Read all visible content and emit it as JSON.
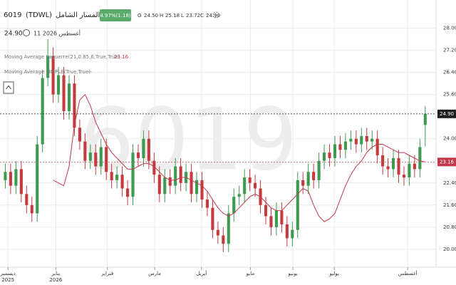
{
  "header": {
    "symbol": "6019",
    "exchange": "(TDWL)",
    "name": "المسار الشامل",
    "change": "4.97%(1.18)",
    "open_label": "O",
    "open": "24.50",
    "high_label": "H",
    "high": "25.18",
    "low_label": "L",
    "low": "23.72",
    "close_label": "C",
    "close": "24.90",
    "last": "24.90",
    "date": "11 أغسطس 2026"
  },
  "indicators": [
    {
      "name": "Moving Average Laguerre(21,0.85,6,True,True)",
      "value": "23.16"
    },
    {
      "name": "Moving Average SIMPLE(True,True)",
      "value": "--"
    }
  ],
  "chart_data": {
    "type": "candlestick",
    "watermark": "6019",
    "up_color": "#3d9a50",
    "down_color": "#c43a3d",
    "xlim": [
      -1,
      80.5
    ],
    "xticks": [
      {
        "value": 0.5,
        "label": "ديسمبر",
        "year": "2025"
      },
      {
        "value": 9.5,
        "label": "يناير",
        "year": "2026"
      },
      {
        "value": 19.2,
        "label": "فبراير"
      },
      {
        "value": 28.1,
        "label": "مارس"
      },
      {
        "value": 36.9,
        "label": "أبريل"
      },
      {
        "value": 46.1,
        "label": "مايو"
      },
      {
        "value": 54.1,
        "label": "يونيو"
      },
      {
        "value": 61.9,
        "label": "يوليو"
      },
      {
        "value": 75.7,
        "label": "أغسطس"
      }
    ],
    "ylim": [
      19.3,
      28.3
    ],
    "yticks": [
      {
        "value": 20,
        "label": "20.00"
      },
      {
        "value": 20.8,
        "label": "20.80"
      },
      {
        "value": 21.6,
        "label": "21.60"
      },
      {
        "value": 22.4,
        "label": "22.40"
      },
      {
        "value": 24,
        "label": "24.00"
      },
      {
        "value": 25.6,
        "label": "25.60"
      },
      {
        "value": 26.4,
        "label": "26.40"
      },
      {
        "value": 27.2,
        "label": "27.20"
      },
      {
        "value": 28,
        "label": "28.00"
      }
    ],
    "open": [
      22.5,
      22.8,
      22.3,
      22.9,
      22.0,
      21.6,
      21.3,
      23.8,
      26.2,
      27.0,
      25.6,
      26.3,
      25.0,
      26.0,
      24.4,
      23.9,
      23.2,
      23.5,
      23.0,
      23.7,
      22.8,
      22.5,
      22.7,
      22.2,
      21.9,
      23.5,
      23.3,
      24.0,
      23.2,
      22.7,
      22.0,
      22.6,
      22.3,
      23.0,
      22.4,
      22.8,
      22.0,
      22.5,
      21.8,
      21.5,
      20.7,
      20.5,
      20.2,
      21.3,
      21.9,
      22.0,
      22.6,
      22.4,
      22.2,
      21.6,
      21.2,
      20.8,
      21.4,
      20.9,
      20.4,
      20.7,
      22.5,
      22.3,
      22.8,
      22.5,
      23.2,
      23.5,
      23.3,
      23.8,
      23.6,
      23.9,
      24.0,
      23.8,
      24.1,
      23.9,
      24.0,
      23.4,
      23.0,
      22.9,
      23.3,
      22.7,
      22.6,
      23.1,
      22.9,
      24.5
    ],
    "high": [
      23.1,
      23.1,
      23.2,
      23.2,
      22.3,
      21.9,
      24.1,
      26.5,
      27.6,
      27.3,
      26.6,
      26.6,
      26.3,
      26.3,
      24.7,
      24.2,
      23.8,
      23.8,
      24.0,
      24.0,
      23.1,
      23.0,
      23.0,
      22.5,
      23.8,
      23.8,
      24.3,
      24.3,
      23.5,
      23.0,
      22.9,
      22.9,
      23.3,
      23.3,
      23.1,
      23.1,
      22.8,
      22.8,
      22.1,
      21.8,
      21.0,
      20.8,
      21.6,
      22.2,
      22.3,
      22.9,
      22.9,
      22.7,
      22.5,
      21.9,
      21.5,
      21.7,
      21.7,
      21.2,
      21.0,
      22.8,
      22.8,
      23.1,
      23.1,
      23.5,
      23.8,
      23.8,
      24.1,
      24.1,
      24.2,
      24.3,
      24.3,
      24.4,
      24.4,
      24.3,
      24.3,
      23.7,
      23.3,
      23.6,
      23.6,
      23.0,
      23.4,
      23.4,
      24.0,
      25.18
    ],
    "low": [
      22.2,
      22.0,
      22.0,
      21.7,
      21.3,
      21.0,
      21.0,
      23.5,
      25.9,
      25.3,
      25.3,
      24.7,
      24.7,
      24.1,
      23.6,
      22.9,
      22.9,
      22.7,
      22.7,
      22.5,
      22.2,
      22.2,
      21.9,
      21.6,
      21.6,
      23.0,
      23.0,
      22.9,
      22.4,
      21.7,
      21.7,
      22.0,
      22.0,
      22.1,
      22.1,
      21.7,
      21.7,
      21.5,
      21.2,
      20.4,
      20.2,
      19.9,
      19.9,
      21.0,
      21.6,
      21.7,
      22.1,
      21.9,
      21.3,
      20.9,
      20.5,
      20.5,
      20.6,
      20.1,
      20.1,
      20.4,
      22.0,
      22.0,
      22.2,
      22.2,
      22.9,
      23.0,
      23.0,
      23.3,
      23.3,
      23.6,
      23.5,
      23.5,
      23.6,
      23.6,
      23.1,
      22.7,
      22.6,
      22.6,
      22.4,
      22.3,
      22.3,
      22.6,
      22.6,
      23.72
    ],
    "close": [
      22.8,
      22.3,
      22.9,
      22.0,
      21.6,
      21.3,
      23.8,
      26.2,
      27.0,
      25.6,
      26.3,
      25.0,
      26.0,
      24.4,
      23.9,
      23.2,
      23.5,
      23.0,
      23.7,
      22.8,
      22.5,
      22.7,
      22.2,
      21.9,
      23.5,
      23.3,
      24.0,
      23.2,
      22.7,
      22.0,
      22.6,
      22.3,
      23.0,
      22.4,
      22.8,
      22.0,
      22.5,
      21.8,
      21.5,
      20.7,
      20.5,
      20.2,
      21.3,
      21.9,
      22.0,
      22.6,
      22.4,
      22.2,
      21.6,
      21.2,
      20.8,
      21.4,
      20.9,
      20.4,
      20.7,
      22.5,
      22.3,
      22.8,
      22.5,
      23.2,
      23.5,
      23.3,
      23.8,
      23.6,
      23.9,
      24.0,
      23.8,
      24.1,
      23.9,
      24.0,
      23.4,
      23.0,
      22.9,
      23.3,
      22.7,
      22.6,
      23.1,
      22.9,
      23.7,
      24.9
    ],
    "ma": {
      "color": "#c0394a",
      "values": [
        null,
        null,
        null,
        null,
        null,
        null,
        null,
        null,
        null,
        22.5,
        22.4,
        22.3,
        23.0,
        24.5,
        25.4,
        25.6,
        25.2,
        24.6,
        24.2,
        23.8,
        23.5,
        23.3,
        23.1,
        22.9,
        22.9,
        23.0,
        23.1,
        23.1,
        23.0,
        22.8,
        22.6,
        22.5,
        22.5,
        22.6,
        22.6,
        22.5,
        22.4,
        22.3,
        22.1,
        21.8,
        21.5,
        21.3,
        21.2,
        21.3,
        21.5,
        21.7,
        21.9,
        22.0,
        21.9,
        21.7,
        21.5,
        21.4,
        21.4,
        21.6,
        21.8,
        22.0,
        22.2,
        22.1,
        21.6,
        21.2,
        21.0,
        21.1,
        21.3,
        21.8,
        22.3,
        22.7,
        23.0,
        23.2,
        23.5,
        23.7,
        23.8,
        23.8,
        23.7,
        23.6,
        23.5,
        23.5,
        23.4,
        23.3,
        23.2,
        23.16
      ]
    },
    "price_labels": [
      {
        "value": 24.9,
        "label": "24.90",
        "color": "#1e1e1e"
      },
      {
        "value": 23.16,
        "label": "23.16",
        "color": "#c0394a"
      }
    ]
  }
}
